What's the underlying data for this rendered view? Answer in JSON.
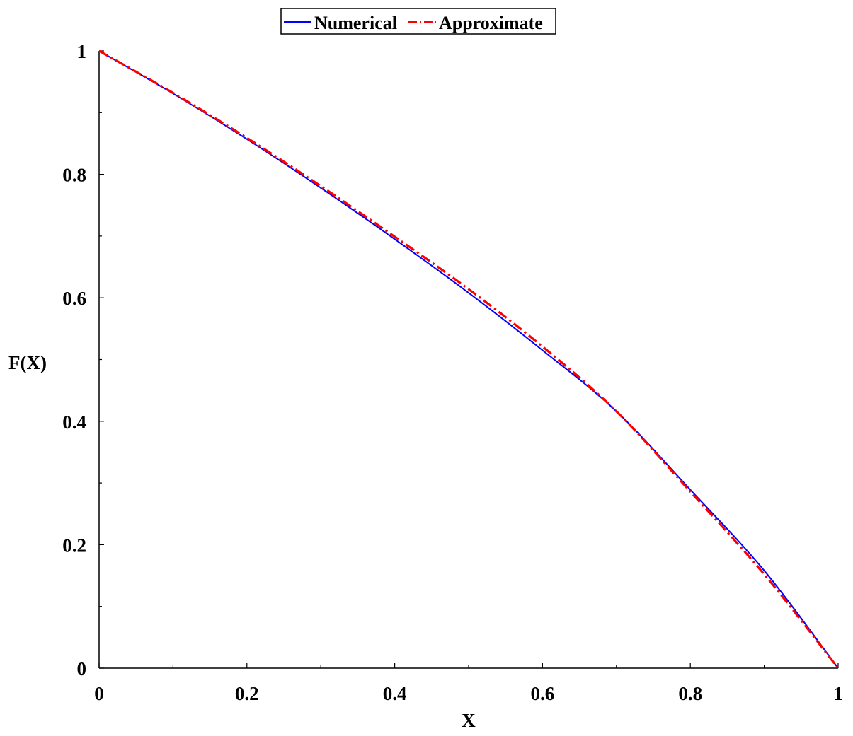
{
  "chart_data": {
    "type": "line",
    "xlabel": "X",
    "ylabel": "F(X)",
    "xlim": [
      0,
      1
    ],
    "ylim": [
      0,
      1
    ],
    "grid": false,
    "legend_position": "top-center",
    "x_ticks": [
      "0",
      "0.2",
      "0.4",
      "0.6",
      "0.8",
      "1"
    ],
    "y_ticks": [
      "0",
      "0.2",
      "0.4",
      "0.6",
      "0.8",
      "1"
    ],
    "x": [
      0,
      0.1,
      0.2,
      0.3,
      0.4,
      0.5,
      0.6,
      0.7,
      0.8,
      0.9,
      1.0
    ],
    "series": [
      {
        "name": "Numerical",
        "color": "#0000ff",
        "style": "solid",
        "values": [
          1.0,
          0.931,
          0.857,
          0.778,
          0.695,
          0.608,
          0.515,
          0.416,
          0.289,
          0.158,
          0.0
        ]
      },
      {
        "name": "Approximate",
        "color": "#ff0000",
        "style": "dash-dot",
        "values": [
          1.0,
          0.932,
          0.859,
          0.781,
          0.699,
          0.614,
          0.521,
          0.416,
          0.286,
          0.152,
          0.0
        ]
      }
    ]
  }
}
